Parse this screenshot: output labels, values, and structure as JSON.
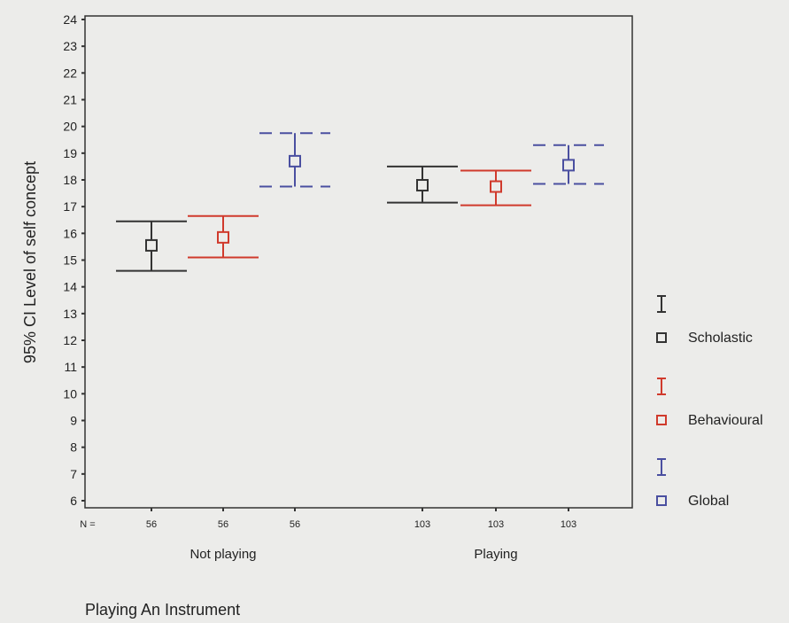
{
  "chart_data": {
    "type": "errorbar",
    "title": "",
    "ylabel": "95% CI  Level of self concept",
    "xlabel": "Playing An Instrument",
    "ylim": [
      6,
      24
    ],
    "yticks": [
      6,
      7,
      8,
      9,
      10,
      11,
      12,
      13,
      14,
      15,
      16,
      17,
      18,
      19,
      20,
      21,
      22,
      23,
      24
    ],
    "n_prefix": "N =",
    "groups": [
      {
        "label": "Not playing",
        "n": [
          "56",
          "56",
          "56"
        ]
      },
      {
        "label": "Playing",
        "n": [
          "103",
          "103",
          "103"
        ]
      }
    ],
    "series": [
      {
        "name": "Scholastic",
        "color": "#333333",
        "dashed": false,
        "mean": [
          15.55,
          17.8
        ],
        "lower": [
          14.6,
          17.15
        ],
        "upper": [
          16.45,
          18.5
        ]
      },
      {
        "name": "Behavioural",
        "color": "#d03a2c",
        "dashed": false,
        "mean": [
          15.85,
          17.75
        ],
        "lower": [
          15.1,
          17.05
        ],
        "upper": [
          16.65,
          18.35
        ]
      },
      {
        "name": "Global",
        "color": "#4a4fa0",
        "dashed": true,
        "mean": [
          18.7,
          18.55
        ],
        "lower": [
          17.75,
          17.85
        ],
        "upper": [
          19.75,
          19.3
        ]
      }
    ]
  }
}
